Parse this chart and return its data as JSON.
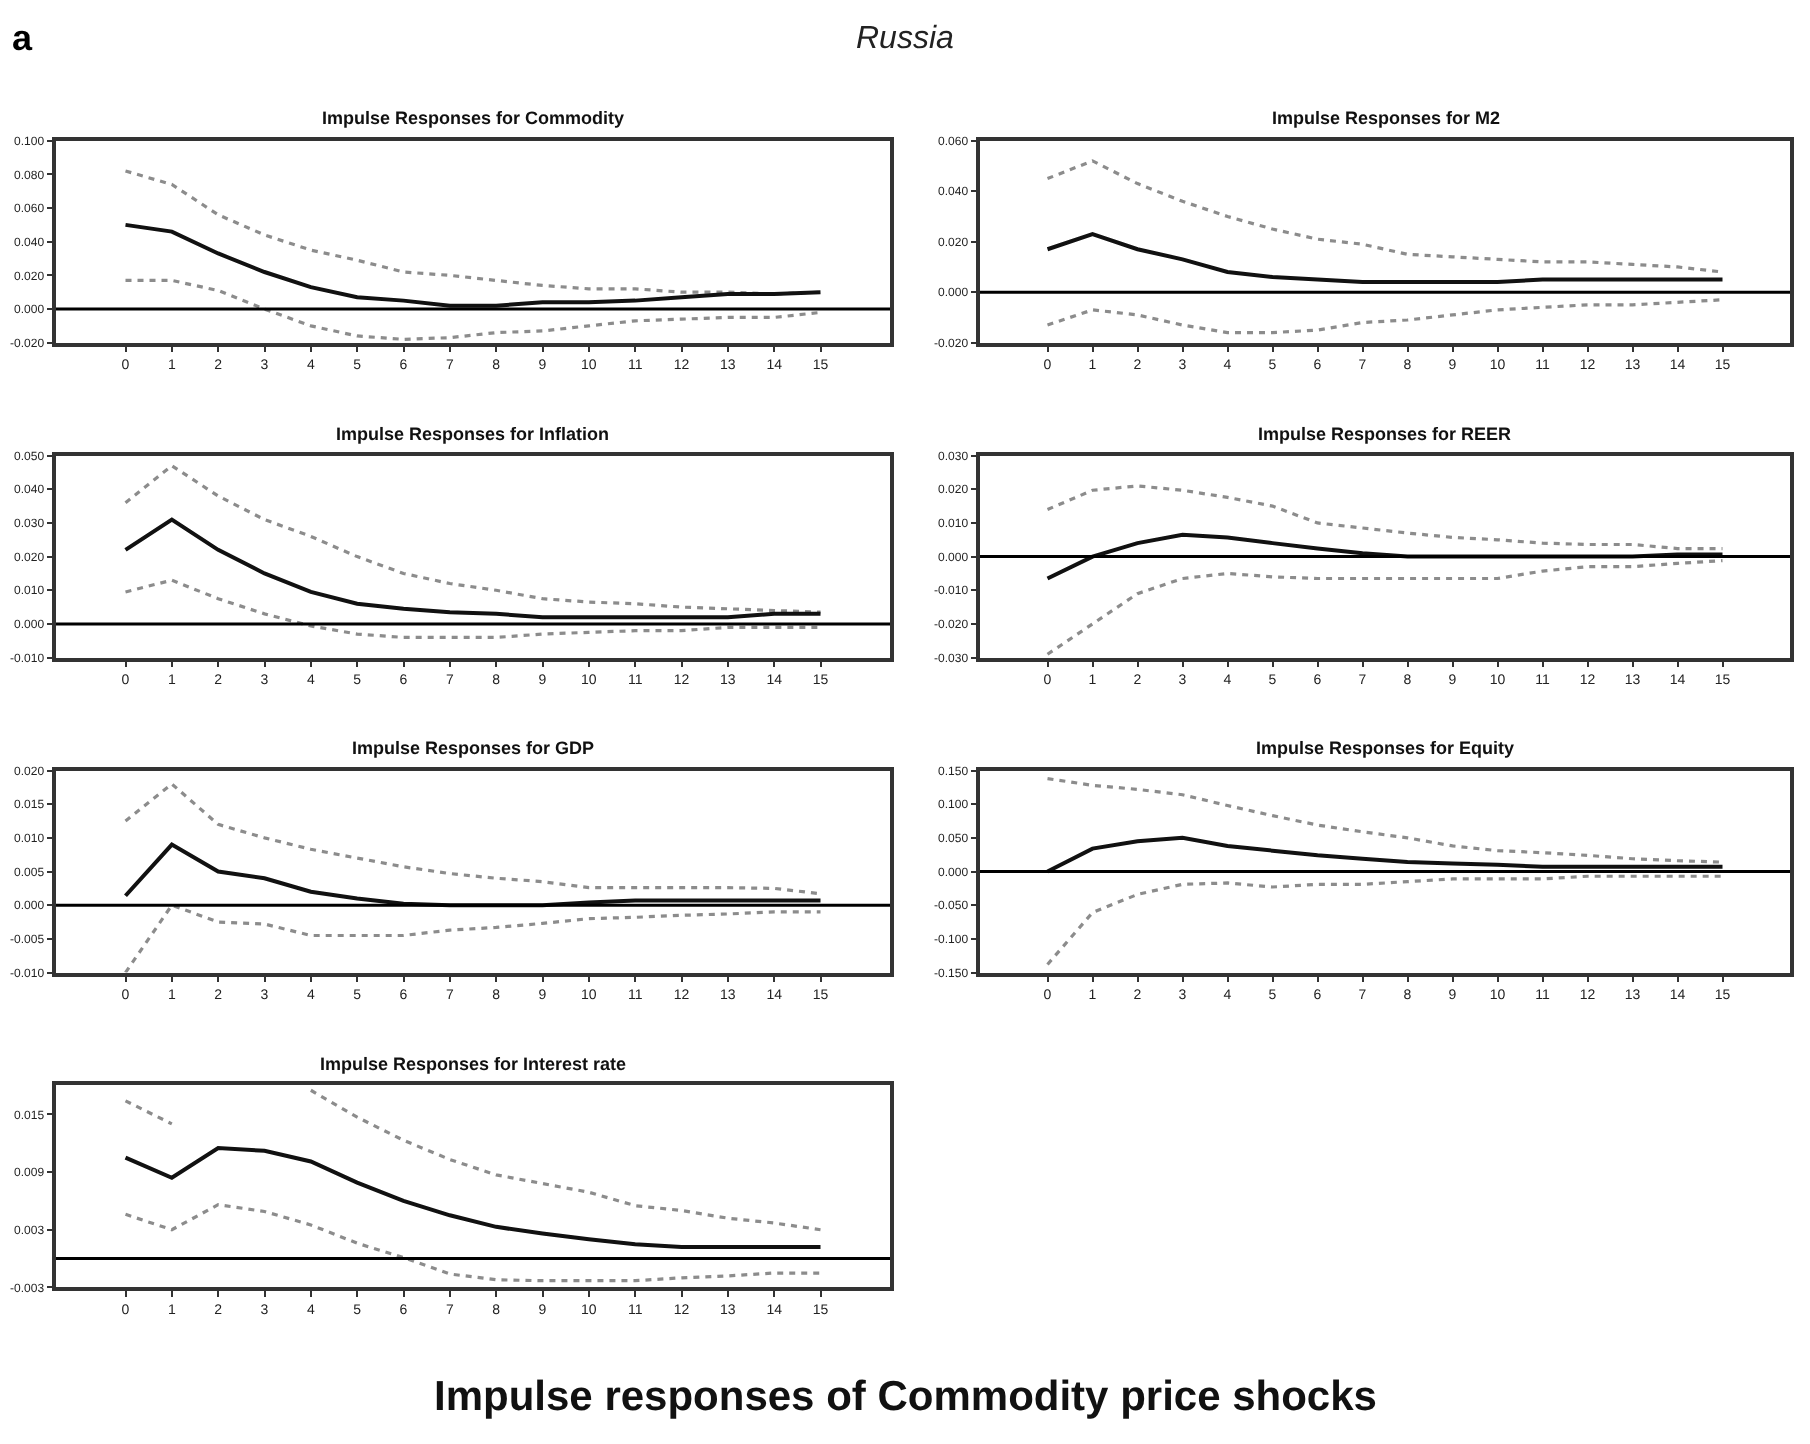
{
  "chart_data": [
    {
      "type": "line",
      "title": "Impulse Responses for Commodity",
      "annotations": [
        "a",
        "Russia",
        "Impulse responses of Commodity price shocks"
      ],
      "x": [
        0,
        1,
        2,
        3,
        4,
        5,
        6,
        7,
        8,
        9,
        10,
        11,
        12,
        13,
        14,
        15
      ],
      "xlim": [
        -1.5,
        16.5
      ],
      "xticks": [
        0,
        1,
        2,
        3,
        4,
        5,
        6,
        7,
        8,
        9,
        10,
        11,
        12,
        13,
        14,
        15
      ],
      "ylim": [
        -0.02,
        0.1
      ],
      "yticks": [
        {
          "value": 0.1,
          "label": "0.100"
        },
        {
          "value": 0.08,
          "label": "0.080"
        },
        {
          "value": 0.06,
          "label": "0.060"
        },
        {
          "value": 0.04,
          "label": "0.040"
        },
        {
          "value": 0.02,
          "label": "0.020"
        },
        {
          "value": 0,
          "label": "0.000"
        },
        {
          "value": -0.02,
          "label": "-0.020"
        }
      ],
      "ref_lines": [
        {
          "axis": "y",
          "value": 0,
          "color": "#000000"
        }
      ],
      "series": [
        {
          "color": "#8c8c8c",
          "line_style": "dotted",
          "values": [
            0.082,
            0.074,
            0.056,
            0.044,
            0.035,
            0.029,
            0.022,
            0.02,
            0.017,
            0.014,
            0.012,
            0.012,
            0.01,
            0.01,
            0.009,
            0.01
          ]
        },
        {
          "color": "#111111",
          "line_style": "solid",
          "values": [
            0.05,
            0.046,
            0.033,
            0.022,
            0.013,
            0.007,
            0.005,
            0.002,
            0.002,
            0.004,
            0.004,
            0.005,
            0.007,
            0.009,
            0.009,
            0.01
          ]
        },
        {
          "color": "#8c8c8c",
          "line_style": "dotted",
          "values": [
            0.017,
            0.017,
            0.011,
            0.0,
            -0.01,
            -0.016,
            -0.018,
            -0.017,
            -0.014,
            -0.013,
            -0.01,
            -0.007,
            -0.006,
            -0.005,
            -0.005,
            -0.002
          ]
        }
      ]
    },
    {
      "type": "line",
      "title": "Impulse Responses for M2",
      "x": [
        0,
        1,
        2,
        3,
        4,
        5,
        6,
        7,
        8,
        9,
        10,
        11,
        12,
        13,
        14,
        15
      ],
      "xlim": [
        -1.5,
        16.5
      ],
      "xticks": [
        0,
        1,
        2,
        3,
        4,
        5,
        6,
        7,
        8,
        9,
        10,
        11,
        12,
        13,
        14,
        15
      ],
      "ylim": [
        -0.02,
        0.06
      ],
      "yticks": [
        {
          "value": 0.06,
          "label": "0.060"
        },
        {
          "value": 0.04,
          "label": "0.040"
        },
        {
          "value": 0.02,
          "label": "0.020"
        },
        {
          "value": 0,
          "label": "0.000"
        },
        {
          "value": -0.02,
          "label": "-0.020"
        }
      ],
      "ref_lines": [
        {
          "axis": "y",
          "value": 0,
          "color": "#000000"
        }
      ],
      "series": [
        {
          "color": "#8c8c8c",
          "line_style": "dotted",
          "values": [
            0.045,
            0.052,
            0.043,
            0.036,
            0.03,
            0.025,
            0.021,
            0.019,
            0.015,
            0.014,
            0.013,
            0.012,
            0.012,
            0.011,
            0.01,
            0.008
          ]
        },
        {
          "color": "#111111",
          "line_style": "solid",
          "values": [
            0.017,
            0.023,
            0.017,
            0.013,
            0.008,
            0.006,
            0.005,
            0.004,
            0.004,
            0.004,
            0.004,
            0.005,
            0.005,
            0.005,
            0.005,
            0.005
          ]
        },
        {
          "color": "#8c8c8c",
          "line_style": "dotted",
          "values": [
            -0.013,
            -0.007,
            -0.009,
            -0.013,
            -0.016,
            -0.016,
            -0.015,
            -0.012,
            -0.011,
            -0.009,
            -0.007,
            -0.006,
            -0.005,
            -0.005,
            -0.004,
            -0.003
          ]
        }
      ]
    },
    {
      "type": "line",
      "title": "Impulse Responses for Inflation",
      "x": [
        0,
        1,
        2,
        3,
        4,
        5,
        6,
        7,
        8,
        9,
        10,
        11,
        12,
        13,
        14,
        15
      ],
      "xlim": [
        -1.5,
        16.5
      ],
      "xticks": [
        0,
        1,
        2,
        3,
        4,
        5,
        6,
        7,
        8,
        9,
        10,
        11,
        12,
        13,
        14,
        15
      ],
      "ylim": [
        -0.01,
        0.05
      ],
      "yticks": [
        {
          "value": 0.05,
          "label": "0.050"
        },
        {
          "value": 0.04,
          "label": "0.040"
        },
        {
          "value": 0.03,
          "label": "0.030"
        },
        {
          "value": 0.02,
          "label": "0.020"
        },
        {
          "value": 0.01,
          "label": "0.010"
        },
        {
          "value": 0,
          "label": "0.000"
        },
        {
          "value": -0.01,
          "label": "-0.010"
        }
      ],
      "ref_lines": [
        {
          "axis": "y",
          "value": 0,
          "color": "#000000"
        }
      ],
      "series": [
        {
          "color": "#8c8c8c",
          "line_style": "dotted",
          "values": [
            0.036,
            0.047,
            0.038,
            0.031,
            0.026,
            0.02,
            0.015,
            0.012,
            0.01,
            0.0075,
            0.0065,
            0.006,
            0.005,
            0.0045,
            0.004,
            0.0035
          ]
        },
        {
          "color": "#111111",
          "line_style": "solid",
          "values": [
            0.022,
            0.031,
            0.022,
            0.015,
            0.0095,
            0.006,
            0.0045,
            0.0035,
            0.003,
            0.002,
            0.002,
            0.002,
            0.002,
            0.002,
            0.003,
            0.003
          ]
        },
        {
          "color": "#8c8c8c",
          "line_style": "dotted",
          "values": [
            0.0095,
            0.013,
            0.0075,
            0.003,
            -0.0006,
            -0.003,
            -0.004,
            -0.004,
            -0.004,
            -0.003,
            -0.0025,
            -0.002,
            -0.002,
            -0.001,
            -0.001,
            -0.001
          ]
        }
      ]
    },
    {
      "type": "line",
      "title": "Impulse Responses for REER",
      "x": [
        0,
        1,
        2,
        3,
        4,
        5,
        6,
        7,
        8,
        9,
        10,
        11,
        12,
        13,
        14,
        15
      ],
      "xlim": [
        -1.5,
        16.5
      ],
      "xticks": [
        0,
        1,
        2,
        3,
        4,
        5,
        6,
        7,
        8,
        9,
        10,
        11,
        12,
        13,
        14,
        15
      ],
      "ylim": [
        -0.03,
        0.03
      ],
      "yticks": [
        {
          "value": 0.03,
          "label": "0.030"
        },
        {
          "value": 0.02,
          "label": "0.020"
        },
        {
          "value": 0.01,
          "label": "0.010"
        },
        {
          "value": 0,
          "label": "0.000"
        },
        {
          "value": -0.01,
          "label": "-0.010"
        },
        {
          "value": -0.02,
          "label": "-0.020"
        },
        {
          "value": -0.03,
          "label": "-0.030"
        }
      ],
      "ref_lines": [
        {
          "axis": "y",
          "value": 0,
          "color": "#000000"
        }
      ],
      "series": [
        {
          "color": "#8c8c8c",
          "line_style": "dotted",
          "values": [
            0.014,
            0.0197,
            0.021,
            0.0197,
            0.0176,
            0.015,
            0.01,
            0.0085,
            0.007,
            0.0057,
            0.005,
            0.004,
            0.0036,
            0.0036,
            0.0024,
            0.0024
          ]
        },
        {
          "color": "#111111",
          "line_style": "solid",
          "values": [
            -0.0065,
            0.0,
            0.004,
            0.0065,
            0.0057,
            0.004,
            0.0024,
            0.001,
            0.0,
            0.0,
            0.0,
            0.0,
            0.0,
            0.0,
            0.0006,
            0.0006
          ]
        },
        {
          "color": "#8c8c8c",
          "line_style": "dotted",
          "values": [
            -0.029,
            -0.02,
            -0.011,
            -0.0065,
            -0.005,
            -0.006,
            -0.0065,
            -0.0065,
            -0.0065,
            -0.0065,
            -0.0065,
            -0.0043,
            -0.003,
            -0.003,
            -0.002,
            -0.0012
          ]
        }
      ]
    },
    {
      "type": "line",
      "title": "Impulse Responses for GDP",
      "x": [
        0,
        1,
        2,
        3,
        4,
        5,
        6,
        7,
        8,
        9,
        10,
        11,
        12,
        13,
        14,
        15
      ],
      "xlim": [
        -1.5,
        16.5
      ],
      "xticks": [
        0,
        1,
        2,
        3,
        4,
        5,
        6,
        7,
        8,
        9,
        10,
        11,
        12,
        13,
        14,
        15
      ],
      "ylim": [
        -0.01,
        0.02
      ],
      "yticks": [
        {
          "value": 0.02,
          "label": "0.020"
        },
        {
          "value": 0.015,
          "label": "0.015"
        },
        {
          "value": 0.01,
          "label": "0.010"
        },
        {
          "value": 0.005,
          "label": "0.005"
        },
        {
          "value": 0,
          "label": "0.000"
        },
        {
          "value": -0.005,
          "label": "-0.005"
        },
        {
          "value": -0.01,
          "label": "-0.010"
        }
      ],
      "ref_lines": [
        {
          "axis": "y",
          "value": 0,
          "color": "#000000"
        }
      ],
      "series": [
        {
          "color": "#8c8c8c",
          "line_style": "dotted",
          "values": [
            0.0125,
            0.018,
            0.012,
            0.01,
            0.0083,
            0.007,
            0.0057,
            0.0047,
            0.004,
            0.0035,
            0.0026,
            0.0026,
            0.0026,
            0.0026,
            0.0025,
            0.0017
          ]
        },
        {
          "color": "#111111",
          "line_style": "solid",
          "values": [
            0.0014,
            0.009,
            0.005,
            0.004,
            0.002,
            0.001,
            0.0002,
            0.0,
            0.0,
            0.0,
            0.0004,
            0.0007,
            0.0007,
            0.0007,
            0.0007,
            0.0007
          ]
        },
        {
          "color": "#8c8c8c",
          "line_style": "dotted",
          "values": [
            -0.01,
            0.0,
            -0.0025,
            -0.0028,
            -0.0045,
            -0.0045,
            -0.0045,
            -0.0037,
            -0.0033,
            -0.0027,
            -0.002,
            -0.0018,
            -0.0015,
            -0.0013,
            -0.001,
            -0.001
          ]
        }
      ]
    },
    {
      "type": "line",
      "title": "Impulse Responses for Equity",
      "x": [
        0,
        1,
        2,
        3,
        4,
        5,
        6,
        7,
        8,
        9,
        10,
        11,
        12,
        13,
        14,
        15
      ],
      "xlim": [
        -1.5,
        16.5
      ],
      "xticks": [
        0,
        1,
        2,
        3,
        4,
        5,
        6,
        7,
        8,
        9,
        10,
        11,
        12,
        13,
        14,
        15
      ],
      "ylim": [
        -0.15,
        0.15
      ],
      "yticks": [
        {
          "value": 0.15,
          "label": "0.150"
        },
        {
          "value": 0.1,
          "label": "0.100"
        },
        {
          "value": 0.05,
          "label": "0.050"
        },
        {
          "value": 0,
          "label": "0.000"
        },
        {
          "value": -0.05,
          "label": "-0.050"
        },
        {
          "value": -0.1,
          "label": "-0.100"
        },
        {
          "value": -0.15,
          "label": "-0.150"
        }
      ],
      "ref_lines": [
        {
          "axis": "y",
          "value": 0,
          "color": "#000000"
        }
      ],
      "series": [
        {
          "color": "#8c8c8c",
          "line_style": "dotted",
          "values": [
            0.138,
            0.128,
            0.122,
            0.114,
            0.098,
            0.083,
            0.069,
            0.059,
            0.05,
            0.038,
            0.031,
            0.028,
            0.024,
            0.019,
            0.016,
            0.014
          ]
        },
        {
          "color": "#111111",
          "line_style": "solid",
          "values": [
            0.0,
            0.034,
            0.045,
            0.05,
            0.038,
            0.031,
            0.024,
            0.019,
            0.014,
            0.012,
            0.01,
            0.007,
            0.007,
            0.007,
            0.007,
            0.007
          ]
        },
        {
          "color": "#8c8c8c",
          "line_style": "dotted",
          "values": [
            -0.138,
            -0.061,
            -0.034,
            -0.019,
            -0.017,
            -0.023,
            -0.019,
            -0.019,
            -0.015,
            -0.011,
            -0.011,
            -0.011,
            -0.007,
            -0.007,
            -0.007,
            -0.007
          ]
        }
      ]
    },
    {
      "type": "line",
      "title": "Impulse Responses for Interest rate",
      "x": [
        0,
        1,
        2,
        3,
        4,
        5,
        6,
        7,
        8,
        9,
        10,
        11,
        12,
        13,
        14,
        15
      ],
      "xlim": [
        -1.5,
        16.5
      ],
      "xticks": [
        0,
        1,
        2,
        3,
        4,
        5,
        6,
        7,
        8,
        9,
        10,
        11,
        12,
        13,
        14,
        15
      ],
      "ylim": [
        -0.003,
        0.018
      ],
      "yticks": [
        {
          "value": 0.015,
          "label": "0.015"
        },
        {
          "value": 0.009,
          "label": "0.009"
        },
        {
          "value": 0.003,
          "label": "0.003"
        },
        {
          "value": -0.003,
          "label": "-0.003"
        }
      ],
      "ref_lines": [
        {
          "axis": "y",
          "value": 0,
          "color": "#000000"
        }
      ],
      "series": [
        {
          "color": "#8c8c8c",
          "line_style": "dotted",
          "values": [
            0.0164,
            0.014,
            null,
            null,
            0.0175,
            0.0147,
            0.0123,
            0.0103,
            0.0087,
            0.0078,
            0.0069,
            0.0055,
            0.005,
            0.0042,
            0.0037,
            0.003
          ]
        },
        {
          "color": "#111111",
          "line_style": "solid",
          "values": [
            0.0105,
            0.0084,
            0.0115,
            0.0112,
            0.0101,
            0.0079,
            0.006,
            0.0045,
            0.0033,
            0.0026,
            0.002,
            0.0015,
            0.0012,
            0.0012,
            0.0012,
            0.0012
          ]
        },
        {
          "color": "#8c8c8c",
          "line_style": "dotted",
          "values": [
            0.0046,
            0.003,
            0.0056,
            0.0049,
            0.0035,
            0.0016,
            0.0001,
            -0.0016,
            -0.0022,
            -0.0023,
            -0.0023,
            -0.0023,
            -0.002,
            -0.0018,
            -0.0015,
            -0.0015
          ]
        }
      ]
    }
  ]
}
